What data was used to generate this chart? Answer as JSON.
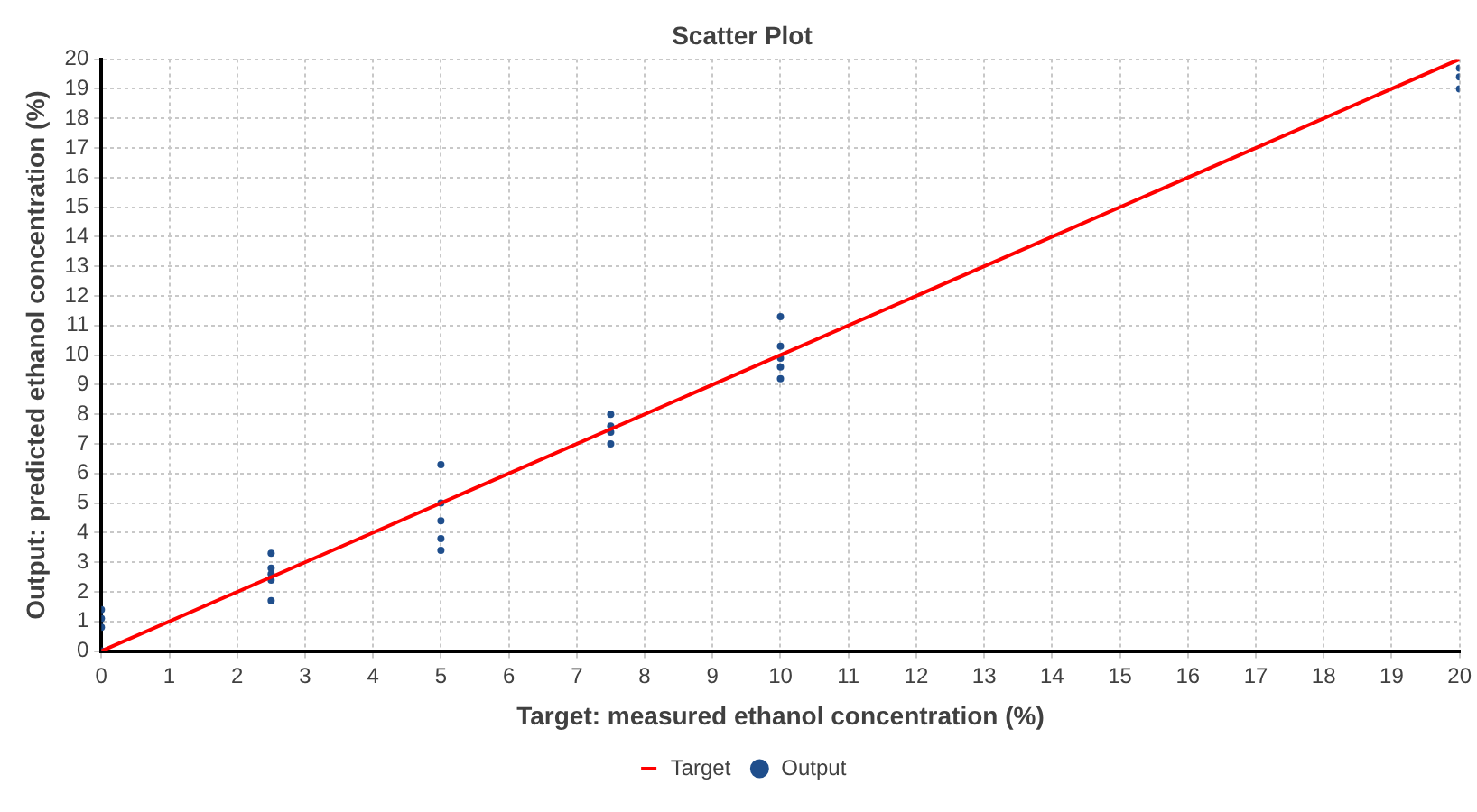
{
  "chart_data": {
    "type": "scatter",
    "title": "Scatter Plot",
    "xlabel": "Target: measured ethanol concentration (%)",
    "ylabel": "Output: predicted ethanol concentration (%)",
    "xlim": [
      0,
      20
    ],
    "xticks": [
      0,
      1,
      2,
      3,
      4,
      5,
      6,
      7,
      8,
      9,
      10,
      11,
      12,
      13,
      14,
      15,
      16,
      17,
      18,
      19,
      20
    ],
    "ylim": [
      0,
      20
    ],
    "yticks": [
      0,
      1,
      2,
      3,
      4,
      5,
      6,
      7,
      8,
      9,
      10,
      11,
      12,
      13,
      14,
      15,
      16,
      17,
      18,
      19,
      20
    ],
    "grid": true,
    "legend": "bottom",
    "marker": "circle",
    "series": [
      {
        "name": "Target",
        "type": "line",
        "color": "#ff0000",
        "x": [
          0,
          20
        ],
        "values": [
          0,
          20
        ],
        "marker": "none",
        "line_style": "solid"
      },
      {
        "name": "Output",
        "color": "#1f4e8c",
        "x": [
          0,
          0,
          0,
          0,
          2.5,
          2.5,
          2.5,
          2.5,
          2.5,
          5,
          5,
          5,
          5,
          5,
          7.5,
          7.5,
          7.5,
          7.5,
          10,
          10,
          10,
          10,
          10,
          20,
          20,
          20
        ],
        "values": [
          1.4,
          1.1,
          0.8,
          0,
          3.3,
          2.8,
          2.6,
          2.4,
          1.7,
          6.3,
          5.0,
          4.4,
          3.8,
          3.4,
          8.0,
          7.6,
          7.4,
          7.0,
          11.3,
          10.3,
          9.9,
          9.6,
          9.2,
          19.7,
          19.4,
          19.0
        ]
      }
    ]
  }
}
